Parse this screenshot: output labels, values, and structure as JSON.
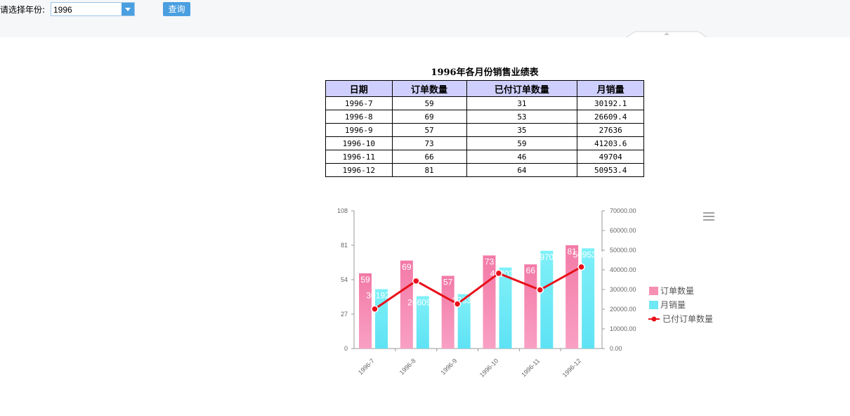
{
  "toolbar": {
    "year_label": "请选择年份:",
    "year_value": "1996",
    "query_label": "查询"
  },
  "report": {
    "title": "1996年各月份销售业绩表",
    "headers": [
      "日期",
      "订单数量",
      "已付订单数量",
      "月销量"
    ],
    "rows": [
      [
        "1996-7",
        "59",
        "31",
        "30192.1"
      ],
      [
        "1996-8",
        "69",
        "53",
        "26609.4"
      ],
      [
        "1996-9",
        "57",
        "35",
        "27636"
      ],
      [
        "1996-10",
        "73",
        "59",
        "41203.6"
      ],
      [
        "1996-11",
        "66",
        "46",
        "49704"
      ],
      [
        "1996-12",
        "81",
        "64",
        "50953.4"
      ]
    ]
  },
  "chart_data": {
    "type": "bar",
    "categories": [
      "1996-7",
      "1996-8",
      "1996-9",
      "1996-10",
      "1996-11",
      "1996-12"
    ],
    "series": [
      {
        "name": "订单数量",
        "type": "bar",
        "axis": "left",
        "values": [
          59,
          69,
          57,
          73,
          66,
          81
        ],
        "labels": [
          "59",
          "69",
          "57",
          "73",
          "66",
          "81"
        ],
        "color": "#f78fb3"
      },
      {
        "name": "月销量",
        "type": "bar",
        "axis": "right",
        "values": [
          30192.1,
          26609.4,
          27636,
          41203.6,
          49704,
          50953.4
        ],
        "labels": [
          "30192.1",
          "26609.4",
          "27636",
          "41203.6",
          "49704",
          "50953.4"
        ],
        "color": "#6ee8f5"
      },
      {
        "name": "已付订单数量",
        "type": "line",
        "axis": "left",
        "values": [
          31,
          53,
          35,
          59,
          46,
          64
        ],
        "color": "#e8101a"
      }
    ],
    "y_left": {
      "min": 0,
      "max": 108,
      "ticks": [
        "0",
        "27",
        "54",
        "81",
        "108"
      ]
    },
    "y_right": {
      "min": 0,
      "max": 70000,
      "ticks": [
        "0.00",
        "10000.00",
        "20000.00",
        "30000.00",
        "40000.00",
        "50000.00",
        "60000.00",
        "70000.00"
      ]
    },
    "legend_position": "right",
    "grid": false
  }
}
